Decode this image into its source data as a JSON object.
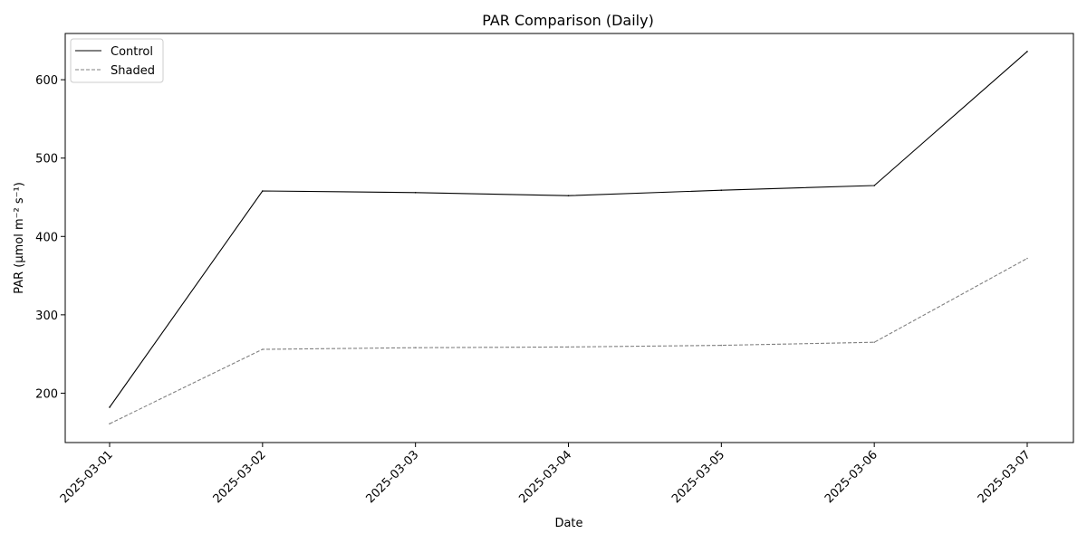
{
  "chart_data": {
    "type": "line",
    "title": "PAR Comparison (Daily)",
    "xlabel": "Date",
    "ylabel": "PAR (µmol m⁻² s⁻¹)",
    "x": [
      "2025-03-01",
      "2025-03-02",
      "2025-03-03",
      "2025-03-04",
      "2025-03-05",
      "2025-03-06",
      "2025-03-07"
    ],
    "yticks": [
      200,
      300,
      400,
      500,
      600
    ],
    "ylim": [
      137,
      659
    ],
    "grid": false,
    "legend_position": "top-left",
    "series": [
      {
        "name": "Control",
        "values": [
          182,
          458,
          456,
          452,
          459,
          465,
          636
        ],
        "color": "#000000",
        "style": "solid"
      },
      {
        "name": "Shaded",
        "values": [
          161,
          256,
          258,
          259,
          261,
          265,
          372
        ],
        "color": "#808080",
        "style": "dashed"
      }
    ]
  }
}
